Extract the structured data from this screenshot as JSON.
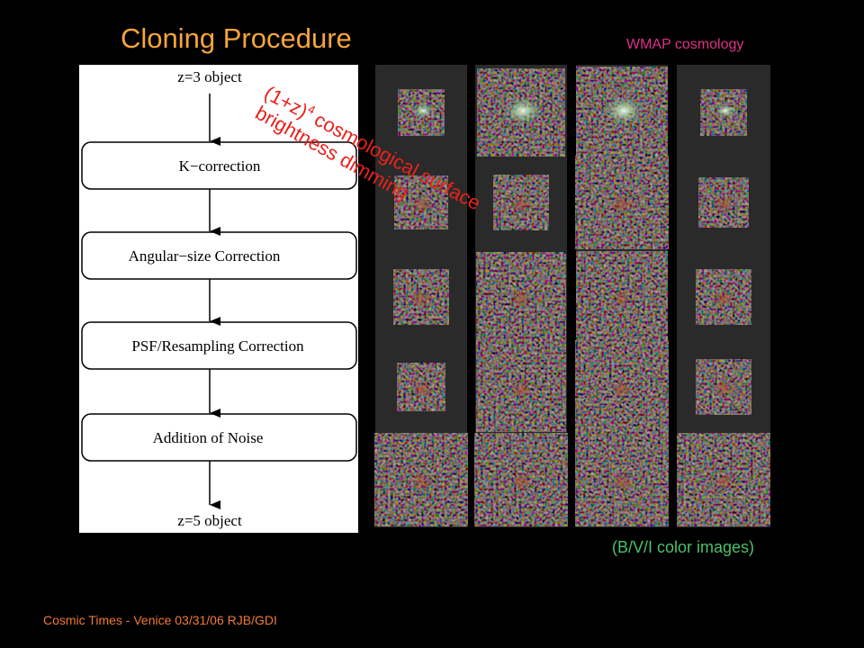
{
  "title": "Cloning Procedure",
  "subtitle": "WMAP cosmology",
  "flowchart": {
    "start": "z=3 object",
    "steps": [
      "K−correction",
      "Angular−size Correction",
      "PSF/Resampling Correction",
      "Addition of Noise"
    ],
    "end": "z=5 object"
  },
  "annotation": {
    "base": "(1+z)",
    "exponent": "4",
    "line1_rest": "cosmological surface",
    "line2": "brightness dimming"
  },
  "caption": "(B/V/I color images)",
  "footer": "Cosmic Times - Venice 03/31/06  RJB/GDI"
}
